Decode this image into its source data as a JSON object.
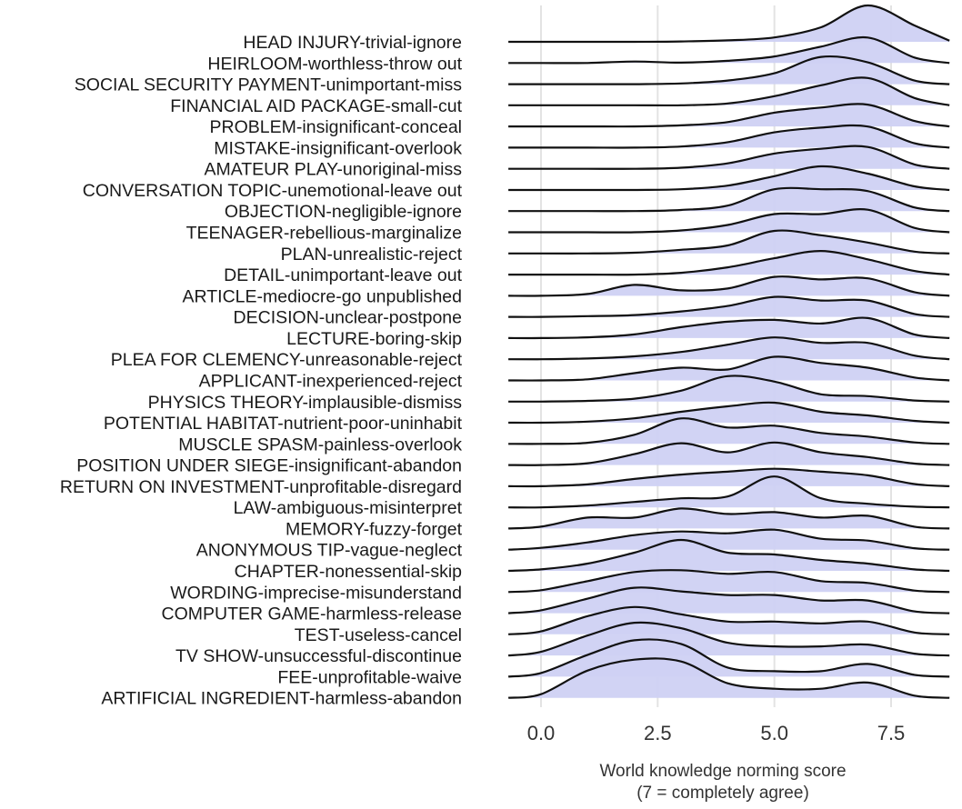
{
  "chart_data": {
    "type": "ridgeline",
    "xlabel_line1": "World knowledge norming score",
    "xlabel_line2": "(7 = completely agree)",
    "xticks": [
      0.0,
      2.5,
      5.0,
      7.5
    ],
    "xtick_labels": [
      "0.0",
      "2.5",
      "5.0",
      "7.5"
    ],
    "xlim": [
      -1.0,
      8.75
    ],
    "grid": true,
    "fill_color": "#cfd1f3",
    "line_color": "#111111",
    "density_grid_x": [
      -0.7,
      0.0,
      1.0,
      2.0,
      3.0,
      4.0,
      5.0,
      6.0,
      7.0,
      8.0,
      8.75
    ],
    "categories": [
      "HEAD INJURY-trivial-ignore",
      "HEIRLOOM-worthless-throw out",
      "SOCIAL SECURITY PAYMENT-unimportant-miss",
      "FINANCIAL AID PACKAGE-small-cut",
      "PROBLEM-insignificant-conceal",
      "MISTAKE-insignificant-overlook",
      "AMATEUR PLAY-unoriginal-miss",
      "CONVERSATION TOPIC-unemotional-leave out",
      "OBJECTION-negligible-ignore",
      "TEENAGER-rebellious-marginalize",
      "PLAN-unrealistic-reject",
      "DETAIL-unimportant-leave out",
      "ARTICLE-mediocre-go unpublished",
      "DECISION-unclear-postpone",
      "LECTURE-boring-skip",
      "PLEA FOR CLEMENCY-unreasonable-reject",
      "APPLICANT-inexperienced-reject",
      "PHYSICS THEORY-implausible-dismiss",
      "POTENTIAL HABITAT-nutrient-poor-uninhabit",
      "MUSCLE SPASM-painless-overlook",
      "POSITION UNDER SIEGE-insignificant-abandon",
      "RETURN ON INVESTMENT-unprofitable-disregard",
      "LAW-ambiguous-misinterpret",
      "MEMORY-fuzzy-forget",
      "ANONYMOUS TIP-vague-neglect",
      "CHAPTER-nonessential-skip",
      "WORDING-imprecise-misunderstand",
      "COMPUTER GAME-harmless-release",
      "TEST-useless-cancel",
      "TV SHOW-unsuccessful-discontinue",
      "FEE-unprofitable-waive",
      "ARTIFICIAL INGREDIENT-harmless-abandon"
    ],
    "densities": [
      [
        0,
        0,
        0,
        0,
        0.01,
        0.04,
        0.12,
        0.4,
        1.0,
        0.45,
        0.03
      ],
      [
        0,
        0,
        0,
        0.04,
        0.01,
        0.06,
        0.18,
        0.45,
        0.7,
        0.15,
        0.0
      ],
      [
        0,
        0,
        0,
        0,
        0.02,
        0.1,
        0.3,
        0.75,
        0.6,
        0.1,
        0.0
      ],
      [
        0,
        0,
        0,
        0,
        0,
        0.05,
        0.25,
        0.55,
        0.75,
        0.2,
        0.0
      ],
      [
        0,
        0,
        0,
        0,
        0.03,
        0.12,
        0.38,
        0.52,
        0.6,
        0.15,
        0.0
      ],
      [
        0,
        0,
        0,
        0,
        0.03,
        0.15,
        0.42,
        0.55,
        0.58,
        0.12,
        0.0
      ],
      [
        0,
        0,
        0,
        0,
        0.03,
        0.15,
        0.42,
        0.55,
        0.6,
        0.12,
        0.0
      ],
      [
        0,
        0,
        0,
        0,
        0.02,
        0.12,
        0.38,
        0.65,
        0.45,
        0.1,
        0.0
      ],
      [
        0,
        0,
        0,
        0,
        0.03,
        0.15,
        0.6,
        0.6,
        0.55,
        0.1,
        0.0
      ],
      [
        0,
        0,
        0,
        0,
        0.05,
        0.2,
        0.5,
        0.5,
        0.62,
        0.12,
        0.0
      ],
      [
        0,
        0,
        0,
        0.02,
        0.1,
        0.22,
        0.62,
        0.5,
        0.3,
        0.05,
        0.0
      ],
      [
        0,
        0,
        0,
        0,
        0.05,
        0.2,
        0.45,
        0.65,
        0.42,
        0.1,
        0.0
      ],
      [
        0,
        0,
        0.05,
        0.3,
        0.15,
        0.2,
        0.52,
        0.45,
        0.48,
        0.1,
        0.0
      ],
      [
        0,
        0,
        0.02,
        0.05,
        0.15,
        0.3,
        0.55,
        0.45,
        0.45,
        0.08,
        0.0
      ],
      [
        0,
        0,
        0.02,
        0.1,
        0.3,
        0.45,
        0.5,
        0.4,
        0.55,
        0.1,
        0.0
      ],
      [
        0,
        0,
        0.02,
        0.08,
        0.2,
        0.4,
        0.6,
        0.45,
        0.45,
        0.1,
        0.0
      ],
      [
        0,
        0,
        0.03,
        0.2,
        0.35,
        0.3,
        0.65,
        0.48,
        0.35,
        0.08,
        0.0
      ],
      [
        0,
        0,
        0.02,
        0.08,
        0.3,
        0.7,
        0.55,
        0.2,
        0.15,
        0.03,
        0.0
      ],
      [
        0,
        0,
        0.03,
        0.12,
        0.3,
        0.45,
        0.55,
        0.3,
        0.2,
        0.05,
        0.0
      ],
      [
        0,
        0,
        0.03,
        0.25,
        0.7,
        0.45,
        0.5,
        0.3,
        0.2,
        0.04,
        0.0
      ],
      [
        0,
        0,
        0.05,
        0.3,
        0.6,
        0.35,
        0.62,
        0.35,
        0.22,
        0.04,
        0.0
      ],
      [
        0,
        0,
        0.05,
        0.2,
        0.32,
        0.4,
        0.48,
        0.4,
        0.3,
        0.06,
        0.0
      ],
      [
        0,
        0,
        0.05,
        0.15,
        0.25,
        0.3,
        0.85,
        0.25,
        0.1,
        0.02,
        0.0
      ],
      [
        0,
        0.05,
        0.3,
        0.3,
        0.55,
        0.4,
        0.45,
        0.3,
        0.35,
        0.05,
        0.0
      ],
      [
        0,
        0.05,
        0.2,
        0.4,
        0.5,
        0.45,
        0.55,
        0.3,
        0.25,
        0.04,
        0.0
      ],
      [
        0,
        0.04,
        0.2,
        0.5,
        0.85,
        0.5,
        0.45,
        0.3,
        0.2,
        0.04,
        0.0
      ],
      [
        0,
        0.05,
        0.3,
        0.55,
        0.6,
        0.5,
        0.55,
        0.3,
        0.25,
        0.04,
        0.0
      ],
      [
        0,
        0.08,
        0.4,
        0.7,
        0.6,
        0.5,
        0.5,
        0.35,
        0.35,
        0.05,
        0.0
      ],
      [
        0,
        0.08,
        0.5,
        0.75,
        0.55,
        0.35,
        0.35,
        0.3,
        0.35,
        0.05,
        0.0
      ],
      [
        0,
        0.1,
        0.55,
        0.9,
        0.75,
        0.35,
        0.25,
        0.25,
        0.3,
        0.05,
        0.0
      ],
      [
        0,
        0.1,
        0.6,
        1.0,
        0.9,
        0.25,
        0.15,
        0.15,
        0.35,
        0.05,
        0.0
      ],
      [
        0,
        0.1,
        0.75,
        1.05,
        1.0,
        0.4,
        0.25,
        0.25,
        0.42,
        0.06,
        0.0
      ]
    ]
  }
}
